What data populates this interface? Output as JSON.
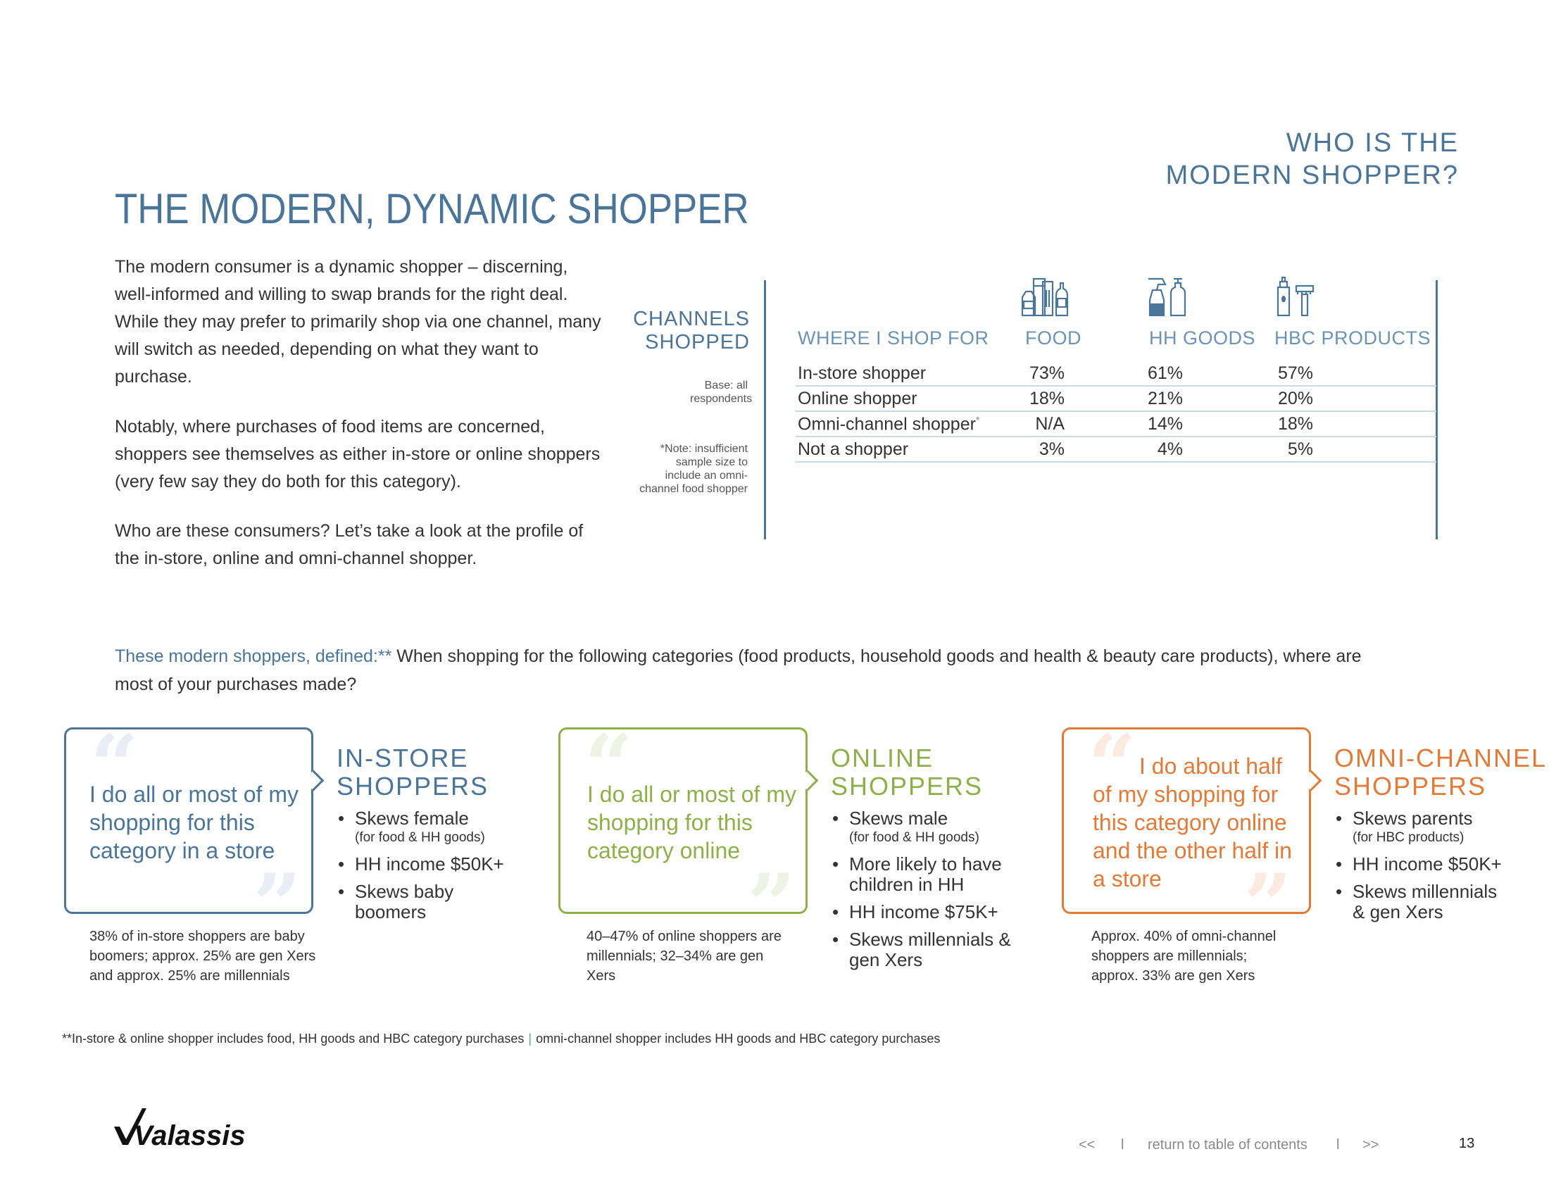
{
  "header": {
    "section_line1": "WHO IS THE",
    "section_line2": "MODERN SHOPPER?",
    "page_title": "THE MODERN, DYNAMIC SHOPPER"
  },
  "intro": {
    "p1": "The modern consumer is a dynamic shopper – discerning, well-informed and willing to swap brands for the right deal. While they may prefer to primarily shop via one channel, many will switch as needed, depending on what they want to purchase.",
    "p2": "Notably, where purchases of food items are concerned, shoppers see themselves as either in-store or online shoppers (very few say they do both for this category).",
    "p3": "Who are these consumers? Let’s take a look at the profile of the in-store, online and omni-channel shopper."
  },
  "channels": {
    "title_line1": "CHANNELS",
    "title_line2": "SHOPPED",
    "base_note": "Base: all respondents",
    "insufficient_note": "*Note: insufficient sample size to include an omni-channel food shopper",
    "headers": [
      "WHERE I SHOP FOR",
      "FOOD",
      "HH GOODS",
      "HBC PRODUCTS"
    ],
    "icons": [
      "food-icon",
      "hh-goods-icon",
      "hbc-products-icon"
    ],
    "rows": [
      {
        "label": "In-store shopper",
        "asterisk": "",
        "food": "73%",
        "hh": "61%",
        "hbc": "57%"
      },
      {
        "label": "Online shopper",
        "asterisk": "",
        "food": "18%",
        "hh": "21%",
        "hbc": "20%"
      },
      {
        "label": "Omni-channel shopper",
        "asterisk": "*",
        "food": "N/A",
        "hh": "14%",
        "hbc": "18%"
      },
      {
        "label": "Not a shopper",
        "asterisk": "",
        "food": "3%",
        "hh": "4%",
        "hbc": "5%"
      }
    ]
  },
  "defined": {
    "lead": "These modern shoppers, defined:**",
    "text": " When shopping for the following categories (food products, household goods and health & beauty care products), where are most of your purchases made?"
  },
  "shoppers": [
    {
      "quote": "I do all or most of my shopping for this category in a store",
      "title_line1": "IN-STORE",
      "title_line2": "SHOPPERS",
      "bullets": [
        {
          "text": "Skews female",
          "sub": "(for food & HH goods)"
        },
        {
          "text": "HH income $50K+",
          "sub": ""
        },
        {
          "text": "Skews baby boomers",
          "sub": ""
        }
      ],
      "stat": "38% of in-store shoppers are baby boomers; approx. 25% are gen Xers and approx. 25% are millennials"
    },
    {
      "quote": "I do all or most of my shopping for this category online",
      "title_line1": "ONLINE",
      "title_line2": "SHOPPERS",
      "bullets": [
        {
          "text": "Skews male",
          "sub": "(for food & HH goods)"
        },
        {
          "text": "More likely to have children in HH",
          "sub": ""
        },
        {
          "text": "HH income $75K+",
          "sub": ""
        },
        {
          "text": "Skews millennials & gen Xers",
          "sub": ""
        }
      ],
      "stat": "40–47% of online shoppers are millennials; 32–34% are gen Xers"
    },
    {
      "quote": "I do about half of my shopping for this category online and the other half in a store",
      "title_line1": "OMNI-CHANNEL",
      "title_line2": "SHOPPERS",
      "bullets": [
        {
          "text": "Skews parents",
          "sub": "(for HBC products)"
        },
        {
          "text": "HH income $50K+",
          "sub": ""
        },
        {
          "text": "Skews millennials & gen Xers",
          "sub": ""
        }
      ],
      "stat": "Approx. 40% of omni-channel shoppers are millennials; approx. 33% are gen Xers"
    }
  ],
  "footnote": {
    "part1": "**In-store & online shopper includes food, HH goods and HBC category purchases",
    "separator": "|",
    "part2": "omni-channel shopper includes HH goods and HBC category purchases"
  },
  "footer": {
    "logo_text": "Valassis",
    "prev": "<<",
    "divider": "l",
    "toc": "return to table of contents",
    "next": ">>",
    "page_number": "13"
  },
  "colors": {
    "blue": "#4b7598",
    "green": "#8db04b",
    "orange": "#e07b39"
  }
}
